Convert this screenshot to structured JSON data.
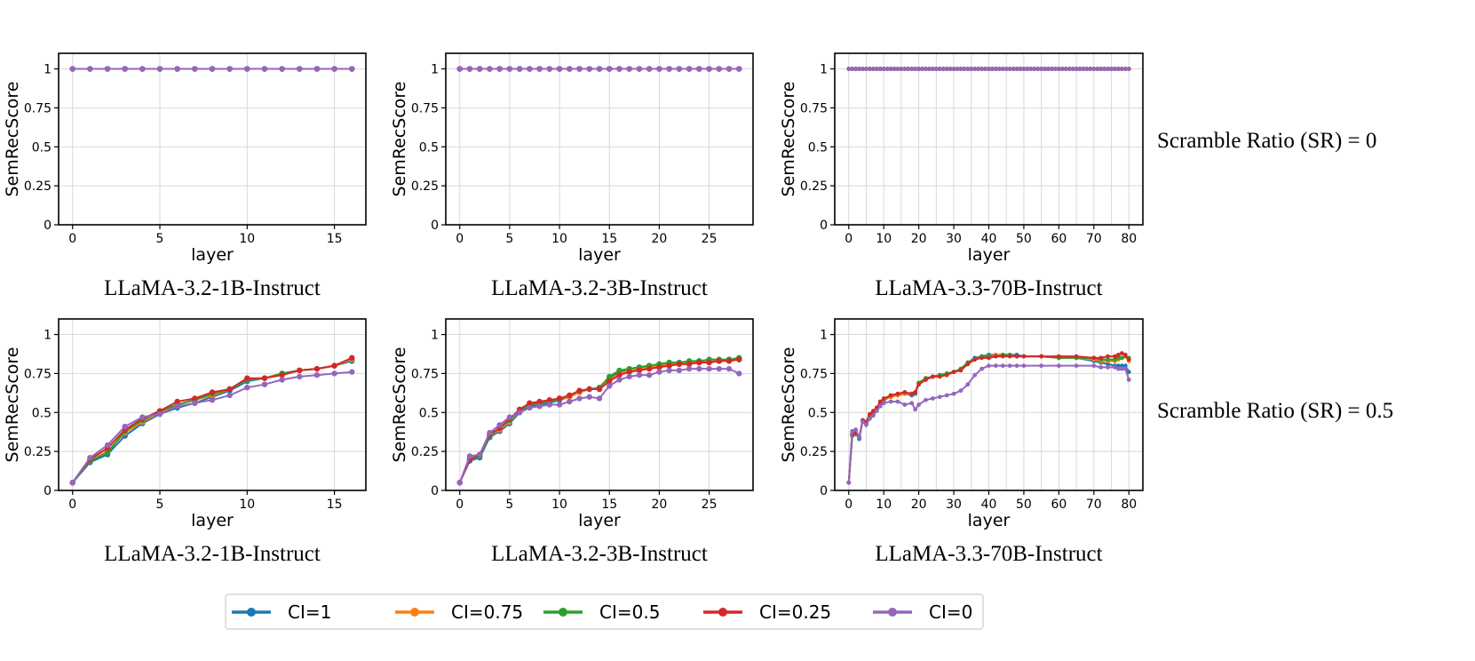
{
  "row_labels": [
    "Scramble Ratio (SR) = 0",
    "Scramble Ratio (SR) = 0.5"
  ],
  "legend": [
    {
      "label": "CI=1",
      "color": "#1f77b4"
    },
    {
      "label": "CI=0.75",
      "color": "#ff7f0e"
    },
    {
      "label": "CI=0.5",
      "color": "#2ca02c"
    },
    {
      "label": "CI=0.25",
      "color": "#d62728"
    },
    {
      "label": "CI=0",
      "color": "#9467bd"
    }
  ],
  "chart_data": [
    {
      "type": "line",
      "title": "LLaMA-3.2-1B-Instruct",
      "row_label": "Scramble Ratio (SR) = 0",
      "xlabel": "layer",
      "ylabel": "SemRecScore",
      "xlim": [
        -0.8,
        16.8
      ],
      "ylim": [
        0,
        1.1
      ],
      "xticks": [
        0,
        5,
        10,
        15
      ],
      "yticks": [
        0,
        0.25,
        0.5,
        0.75,
        1
      ],
      "ytick_labels": [
        "0",
        "0.25",
        "0.5",
        "0.75",
        "1"
      ],
      "grid": true,
      "constant": 1,
      "n_layers": 16,
      "series": [
        {
          "name": "CI=1"
        },
        {
          "name": "CI=0.75"
        },
        {
          "name": "CI=0.5"
        },
        {
          "name": "CI=0.25"
        },
        {
          "name": "CI=0"
        }
      ]
    },
    {
      "type": "line",
      "title": "LLaMA-3.2-3B-Instruct",
      "row_label": "Scramble Ratio (SR) = 0",
      "xlabel": "layer",
      "ylabel": "SemRecScore",
      "xlim": [
        -1.4,
        29.4
      ],
      "ylim": [
        0,
        1.1
      ],
      "xticks": [
        0,
        5,
        10,
        15,
        20,
        25
      ],
      "yticks": [
        0,
        0.25,
        0.5,
        0.75,
        1
      ],
      "ytick_labels": [
        "0",
        "0.25",
        "0.5",
        "0.75",
        "1"
      ],
      "grid": true,
      "constant": 1,
      "n_layers": 28,
      "series": [
        {
          "name": "CI=1"
        },
        {
          "name": "CI=0.75"
        },
        {
          "name": "CI=0.5"
        },
        {
          "name": "CI=0.25"
        },
        {
          "name": "CI=0"
        }
      ]
    },
    {
      "type": "line",
      "title": "LLaMA-3.3-70B-Instruct",
      "row_label": "Scramble Ratio (SR) = 0",
      "xlabel": "layer",
      "ylabel": "SemRecScore",
      "xlim": [
        -4,
        84
      ],
      "ylim": [
        0,
        1.1
      ],
      "xticks": [
        0,
        10,
        20,
        30,
        40,
        50,
        60,
        70,
        80
      ],
      "yticks": [
        0,
        0.25,
        0.5,
        0.75,
        1
      ],
      "ytick_labels": [
        "0",
        "0.25",
        "0.5",
        "0.75",
        "1"
      ],
      "grid": true,
      "minor_grid_step": 5,
      "constant": 1,
      "n_layers": 80,
      "series": [
        {
          "name": "CI=1"
        },
        {
          "name": "CI=0.75"
        },
        {
          "name": "CI=0.5"
        },
        {
          "name": "CI=0.25"
        },
        {
          "name": "CI=0"
        }
      ]
    },
    {
      "type": "line",
      "title": "LLaMA-3.2-1B-Instruct",
      "row_label": "Scramble Ratio (SR) = 0.5",
      "xlabel": "layer",
      "ylabel": "SemRecScore",
      "xlim": [
        -0.8,
        16.8
      ],
      "ylim": [
        0,
        1.1
      ],
      "xticks": [
        0,
        5,
        10,
        15
      ],
      "yticks": [
        0,
        0.25,
        0.5,
        0.75,
        1
      ],
      "ytick_labels": [
        "0",
        "0.25",
        "0.5",
        "0.75",
        "1"
      ],
      "grid": true,
      "x": [
        0,
        1,
        2,
        3,
        4,
        5,
        6,
        7,
        8,
        9,
        10,
        11,
        12,
        13,
        14,
        15,
        16
      ],
      "series": [
        {
          "name": "CI=1",
          "values": [
            0.05,
            0.18,
            0.23,
            0.35,
            0.43,
            0.49,
            0.53,
            0.56,
            0.6,
            0.64,
            0.7,
            0.72,
            0.75,
            0.77,
            0.78,
            0.8,
            0.83
          ]
        },
        {
          "name": "CI=0.75",
          "values": [
            0.05,
            0.19,
            0.25,
            0.37,
            0.44,
            0.5,
            0.55,
            0.58,
            0.61,
            0.65,
            0.71,
            0.72,
            0.75,
            0.77,
            0.78,
            0.8,
            0.84
          ]
        },
        {
          "name": "CI=0.5",
          "values": [
            0.05,
            0.19,
            0.24,
            0.38,
            0.45,
            0.51,
            0.55,
            0.58,
            0.62,
            0.65,
            0.71,
            0.72,
            0.75,
            0.77,
            0.78,
            0.8,
            0.85
          ]
        },
        {
          "name": "CI=0.25",
          "values": [
            0.05,
            0.2,
            0.27,
            0.39,
            0.46,
            0.51,
            0.57,
            0.59,
            0.63,
            0.65,
            0.72,
            0.72,
            0.74,
            0.77,
            0.78,
            0.8,
            0.85
          ]
        },
        {
          "name": "CI=0",
          "values": [
            0.05,
            0.21,
            0.29,
            0.41,
            0.47,
            0.49,
            0.54,
            0.56,
            0.58,
            0.61,
            0.66,
            0.68,
            0.71,
            0.73,
            0.74,
            0.75,
            0.76
          ]
        }
      ]
    },
    {
      "type": "line",
      "title": "LLaMA-3.2-3B-Instruct",
      "row_label": "Scramble Ratio (SR) = 0.5",
      "xlabel": "layer",
      "ylabel": "SemRecScore",
      "xlim": [
        -1.4,
        29.4
      ],
      "ylim": [
        0,
        1.1
      ],
      "xticks": [
        0,
        5,
        10,
        15,
        20,
        25
      ],
      "yticks": [
        0,
        0.25,
        0.5,
        0.75,
        1
      ],
      "ytick_labels": [
        "0",
        "0.25",
        "0.5",
        "0.75",
        "1"
      ],
      "grid": true,
      "x": [
        0,
        1,
        2,
        3,
        4,
        5,
        6,
        7,
        8,
        9,
        10,
        11,
        12,
        13,
        14,
        15,
        16,
        17,
        18,
        19,
        20,
        21,
        22,
        23,
        24,
        25,
        26,
        27,
        28
      ],
      "series": [
        {
          "name": "CI=1",
          "values": [
            0.05,
            0.19,
            0.21,
            0.34,
            0.38,
            0.43,
            0.5,
            0.54,
            0.55,
            0.56,
            0.58,
            0.6,
            0.63,
            0.65,
            0.65,
            0.72,
            0.76,
            0.78,
            0.79,
            0.8,
            0.81,
            0.82,
            0.82,
            0.82,
            0.83,
            0.83,
            0.83,
            0.84,
            0.84
          ]
        },
        {
          "name": "CI=0.75",
          "values": [
            0.05,
            0.2,
            0.22,
            0.35,
            0.39,
            0.44,
            0.51,
            0.55,
            0.56,
            0.57,
            0.59,
            0.6,
            0.63,
            0.65,
            0.65,
            0.71,
            0.75,
            0.77,
            0.78,
            0.79,
            0.8,
            0.81,
            0.81,
            0.82,
            0.82,
            0.83,
            0.83,
            0.84,
            0.85
          ]
        },
        {
          "name": "CI=0.5",
          "values": [
            0.05,
            0.2,
            0.22,
            0.35,
            0.4,
            0.45,
            0.51,
            0.55,
            0.56,
            0.57,
            0.59,
            0.61,
            0.64,
            0.65,
            0.66,
            0.73,
            0.77,
            0.78,
            0.79,
            0.8,
            0.81,
            0.82,
            0.82,
            0.83,
            0.83,
            0.84,
            0.84,
            0.84,
            0.85
          ]
        },
        {
          "name": "CI=0.25",
          "values": [
            0.05,
            0.2,
            0.23,
            0.36,
            0.4,
            0.46,
            0.52,
            0.56,
            0.57,
            0.58,
            0.59,
            0.61,
            0.64,
            0.65,
            0.65,
            0.7,
            0.74,
            0.76,
            0.77,
            0.78,
            0.79,
            0.8,
            0.81,
            0.81,
            0.82,
            0.82,
            0.83,
            0.83,
            0.84
          ]
        },
        {
          "name": "CI=0",
          "values": [
            0.05,
            0.22,
            0.23,
            0.37,
            0.42,
            0.47,
            0.5,
            0.53,
            0.54,
            0.55,
            0.55,
            0.57,
            0.59,
            0.6,
            0.59,
            0.67,
            0.71,
            0.73,
            0.74,
            0.74,
            0.76,
            0.77,
            0.77,
            0.78,
            0.78,
            0.78,
            0.78,
            0.78,
            0.75
          ]
        }
      ]
    },
    {
      "type": "line",
      "title": "LLaMA-3.3-70B-Instruct",
      "row_label": "Scramble Ratio (SR) = 0.5",
      "xlabel": "layer",
      "ylabel": "SemRecScore",
      "xlim": [
        -4,
        84
      ],
      "ylim": [
        0,
        1.1
      ],
      "xticks": [
        0,
        10,
        20,
        30,
        40,
        50,
        60,
        70,
        80
      ],
      "yticks": [
        0,
        0.25,
        0.5,
        0.75,
        1
      ],
      "ytick_labels": [
        "0",
        "0.25",
        "0.5",
        "0.75",
        "1"
      ],
      "grid": true,
      "minor_grid_step": 5,
      "x": [
        0,
        1,
        2,
        3,
        4,
        5,
        6,
        7,
        8,
        9,
        10,
        12,
        14,
        16,
        18,
        19,
        20,
        22,
        24,
        26,
        28,
        30,
        32,
        34,
        36,
        38,
        40,
        42,
        44,
        46,
        48,
        50,
        55,
        60,
        65,
        70,
        72,
        74,
        76,
        77,
        78,
        79,
        80
      ],
      "series": [
        {
          "name": "CI=1",
          "values": [
            0.05,
            0.36,
            0.37,
            0.33,
            0.45,
            0.43,
            0.47,
            0.49,
            0.52,
            0.56,
            0.58,
            0.6,
            0.61,
            0.62,
            0.61,
            0.62,
            0.69,
            0.72,
            0.73,
            0.74,
            0.75,
            0.76,
            0.78,
            0.82,
            0.85,
            0.86,
            0.87,
            0.87,
            0.87,
            0.87,
            0.87,
            0.86,
            0.86,
            0.85,
            0.85,
            0.83,
            0.82,
            0.81,
            0.8,
            0.8,
            0.8,
            0.8,
            0.76
          ]
        },
        {
          "name": "CI=0.75",
          "values": [
            0.05,
            0.35,
            0.37,
            0.34,
            0.45,
            0.43,
            0.48,
            0.5,
            0.52,
            0.56,
            0.58,
            0.6,
            0.61,
            0.62,
            0.62,
            0.63,
            0.69,
            0.72,
            0.73,
            0.74,
            0.75,
            0.76,
            0.78,
            0.82,
            0.84,
            0.86,
            0.86,
            0.87,
            0.87,
            0.87,
            0.86,
            0.86,
            0.86,
            0.85,
            0.85,
            0.84,
            0.83,
            0.83,
            0.83,
            0.84,
            0.85,
            0.86,
            0.83
          ]
        },
        {
          "name": "CI=0.5",
          "values": [
            0.05,
            0.35,
            0.36,
            0.34,
            0.45,
            0.43,
            0.48,
            0.5,
            0.53,
            0.56,
            0.58,
            0.61,
            0.62,
            0.63,
            0.62,
            0.63,
            0.69,
            0.72,
            0.73,
            0.74,
            0.75,
            0.76,
            0.78,
            0.82,
            0.84,
            0.86,
            0.86,
            0.86,
            0.87,
            0.87,
            0.86,
            0.86,
            0.86,
            0.85,
            0.85,
            0.85,
            0.84,
            0.84,
            0.84,
            0.85,
            0.85,
            0.86,
            0.85
          ]
        },
        {
          "name": "CI=0.25",
          "values": [
            0.05,
            0.36,
            0.37,
            0.34,
            0.45,
            0.44,
            0.49,
            0.51,
            0.53,
            0.57,
            0.59,
            0.61,
            0.62,
            0.63,
            0.62,
            0.63,
            0.68,
            0.71,
            0.73,
            0.73,
            0.74,
            0.76,
            0.77,
            0.81,
            0.84,
            0.85,
            0.85,
            0.86,
            0.86,
            0.86,
            0.86,
            0.86,
            0.86,
            0.86,
            0.86,
            0.85,
            0.85,
            0.86,
            0.86,
            0.87,
            0.88,
            0.87,
            0.84
          ]
        },
        {
          "name": "CI=0",
          "values": [
            0.05,
            0.38,
            0.39,
            0.34,
            0.44,
            0.42,
            0.46,
            0.48,
            0.51,
            0.54,
            0.56,
            0.57,
            0.57,
            0.55,
            0.56,
            0.52,
            0.55,
            0.58,
            0.59,
            0.6,
            0.61,
            0.62,
            0.64,
            0.68,
            0.74,
            0.78,
            0.8,
            0.8,
            0.8,
            0.8,
            0.8,
            0.8,
            0.8,
            0.8,
            0.8,
            0.8,
            0.79,
            0.79,
            0.79,
            0.78,
            0.78,
            0.78,
            0.71
          ]
        }
      ]
    }
  ]
}
